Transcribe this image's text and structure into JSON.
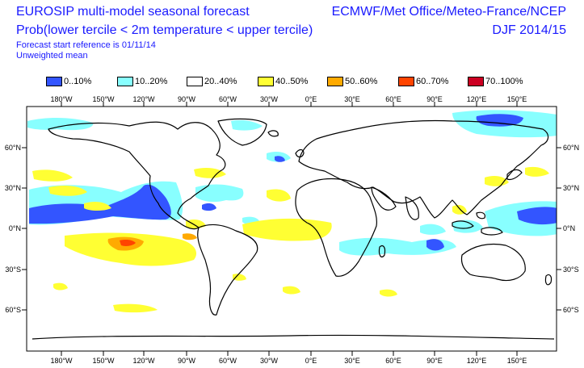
{
  "header": {
    "title": "EUROSIP multi-model seasonal forecast",
    "subtitle": "Prob(lower tercile < 2m temperature < upper tercile)",
    "start_ref": "Forecast start reference is 01/11/14",
    "mean_type": "Unweighted mean",
    "centres": "ECMWF/Met Office/Meteo-France/NCEP",
    "season": "DJF 2014/15"
  },
  "legend": [
    {
      "label": "0..10%",
      "color": "#3355ff"
    },
    {
      "label": "10..20%",
      "color": "#88ffff"
    },
    {
      "label": "20..40%",
      "color": "#ffffff"
    },
    {
      "label": "40..50%",
      "color": "#ffff33"
    },
    {
      "label": "50..60%",
      "color": "#ffaa00"
    },
    {
      "label": "60..70%",
      "color": "#ff4400"
    },
    {
      "label": "70..100%",
      "color": "#cc0022"
    }
  ],
  "axes": {
    "lon_labels": [
      "180°W",
      "150°W",
      "120°W",
      "90°W",
      "60°W",
      "30°W",
      "0°E",
      "30°E",
      "60°E",
      "90°E",
      "120°E",
      "150°E"
    ],
    "lat_labels": [
      "60°N",
      "30°N",
      "0°N",
      "30°S",
      "60°S"
    ]
  },
  "map": {
    "land_color": "#ffffff",
    "coast_color": "#000000"
  }
}
